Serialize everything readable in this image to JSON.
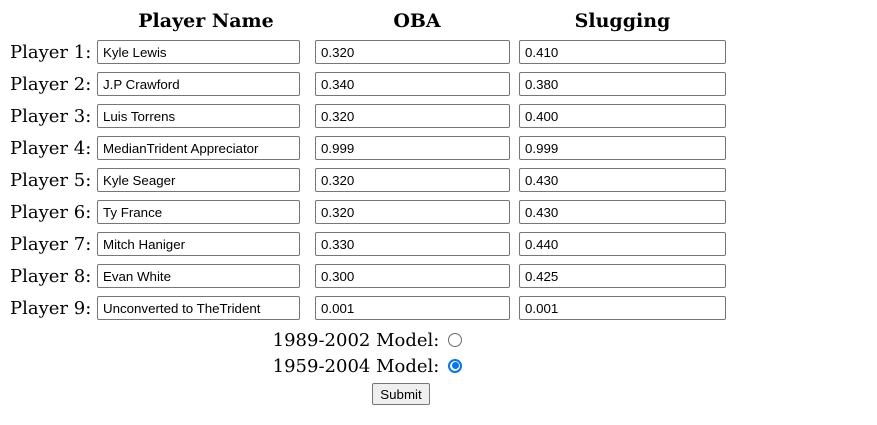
{
  "table": {
    "headers": [
      "Player Name",
      "OBA",
      "Slugging"
    ],
    "rows": [
      {
        "label": "Player 1:",
        "name": "Kyle Lewis",
        "oba": "0.320",
        "slugging": "0.410"
      },
      {
        "label": "Player 2:",
        "name": "J.P Crawford",
        "oba": "0.340",
        "slugging": "0.380"
      },
      {
        "label": "Player 3:",
        "name": "Luis Torrens",
        "oba": "0.320",
        "slugging": "0.400"
      },
      {
        "label": "Player 4:",
        "name": "MedianTrident Appreciator",
        "oba": "0.999",
        "slugging": "0.999"
      },
      {
        "label": "Player 5:",
        "name": "Kyle Seager",
        "oba": "0.320",
        "slugging": "0.430"
      },
      {
        "label": "Player 6:",
        "name": "Ty France",
        "oba": "0.320",
        "slugging": "0.430"
      },
      {
        "label": "Player 7:",
        "name": "Mitch Haniger",
        "oba": "0.330",
        "slugging": "0.440"
      },
      {
        "label": "Player 8:",
        "name": "Evan White",
        "oba": "0.300",
        "slugging": "0.425"
      },
      {
        "label": "Player 9:",
        "name": "Unconverted to TheTrident",
        "oba": "0.001",
        "slugging": "0.001"
      }
    ]
  },
  "form": {
    "radios": [
      {
        "label": "1989-2002 Model:",
        "checked": false
      },
      {
        "label": "1959-2004 Model:",
        "checked": true
      }
    ],
    "submit_label": "Submit",
    "accent_color": "#0075ff",
    "input_border_color": "#767676"
  }
}
